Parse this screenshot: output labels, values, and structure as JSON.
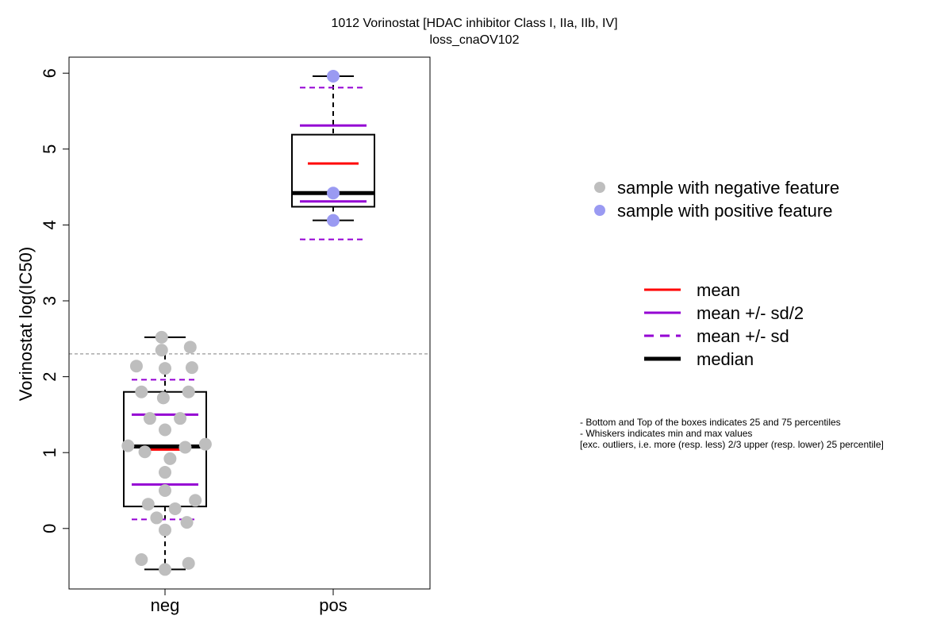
{
  "chart_data": {
    "type": "box",
    "title": "1012 Vorinostat [HDAC inhibitor Class I, IIa, IIb, IV]",
    "subtitle": "loss_cnaOV102",
    "xlabel": "",
    "ylabel": "Vorinostat log(IC50)",
    "ylim": [
      -0.8,
      6.2
    ],
    "yticks": [
      "0",
      "1",
      "2",
      "3",
      "4",
      "5",
      "6"
    ],
    "categories": [
      "neg",
      "pos"
    ],
    "threshold": 2.3,
    "colors": {
      "negative_point": "#bebebe",
      "positive_point": "#9a9af2",
      "mean": "#ff0000",
      "sd": "#9400d3",
      "median": "#000000",
      "threshold": "#808080"
    },
    "groups": [
      {
        "name": "neg",
        "min": -0.54,
        "q1": 0.29,
        "median": 1.08,
        "q3": 1.8,
        "max": 2.52,
        "mean": 1.04,
        "mean_minus_half_sd": 0.58,
        "mean_plus_half_sd": 1.5,
        "mean_minus_sd": 0.12,
        "mean_plus_sd": 1.96,
        "points": [
          {
            "x": 0.98,
            "y": 2.52
          },
          {
            "x": 0.98,
            "y": 2.35
          },
          {
            "x": 1.15,
            "y": 2.39
          },
          {
            "x": 0.83,
            "y": 2.14
          },
          {
            "x": 1.0,
            "y": 2.11
          },
          {
            "x": 1.16,
            "y": 2.12
          },
          {
            "x": 0.86,
            "y": 1.8
          },
          {
            "x": 0.99,
            "y": 1.72
          },
          {
            "x": 1.14,
            "y": 1.8
          },
          {
            "x": 0.91,
            "y": 1.45
          },
          {
            "x": 1.09,
            "y": 1.45
          },
          {
            "x": 1.0,
            "y": 1.3
          },
          {
            "x": 0.78,
            "y": 1.09
          },
          {
            "x": 0.88,
            "y": 1.01
          },
          {
            "x": 1.12,
            "y": 1.07
          },
          {
            "x": 1.24,
            "y": 1.11
          },
          {
            "x": 1.03,
            "y": 0.92
          },
          {
            "x": 1.0,
            "y": 0.74
          },
          {
            "x": 1.0,
            "y": 0.5
          },
          {
            "x": 0.9,
            "y": 0.32
          },
          {
            "x": 1.06,
            "y": 0.26
          },
          {
            "x": 1.18,
            "y": 0.37
          },
          {
            "x": 0.95,
            "y": 0.14
          },
          {
            "x": 1.13,
            "y": 0.08
          },
          {
            "x": 1.0,
            "y": -0.02
          },
          {
            "x": 0.86,
            "y": -0.41
          },
          {
            "x": 1.14,
            "y": -0.46
          },
          {
            "x": 1.0,
            "y": -0.54
          }
        ]
      },
      {
        "name": "pos",
        "min": 4.06,
        "q1": 4.24,
        "median": 4.42,
        "q3": 5.19,
        "max": 5.96,
        "mean": 4.81,
        "mean_minus_half_sd": 4.31,
        "mean_plus_half_sd": 5.31,
        "mean_minus_sd": 3.81,
        "mean_plus_sd": 5.81,
        "points": [
          {
            "x": 2.0,
            "y": 5.96
          },
          {
            "x": 2.0,
            "y": 4.42
          },
          {
            "x": 2.0,
            "y": 4.06
          }
        ]
      }
    ],
    "legend_points": [
      {
        "label": "sample with negative feature",
        "color": "#bebebe"
      },
      {
        "label": "sample with positive feature",
        "color": "#9a9af2"
      }
    ],
    "legend_lines": [
      {
        "label": "mean",
        "color": "#ff0000",
        "style": "solid",
        "weight": "normal"
      },
      {
        "label": "mean +/- sd/2",
        "color": "#9400d3",
        "style": "solid",
        "weight": "normal"
      },
      {
        "label": "mean +/- sd",
        "color": "#9400d3",
        "style": "dashed",
        "weight": "normal"
      },
      {
        "label": "median",
        "color": "#000000",
        "style": "solid",
        "weight": "thick"
      }
    ],
    "notes": [
      "- Bottom and Top of the boxes indicates 25 and 75 percentiles",
      "- Whiskers indicates min and max values",
      "[exc. outliers, i.e. more (resp. less) 2/3 upper (resp. lower) 25 percentile]"
    ]
  }
}
